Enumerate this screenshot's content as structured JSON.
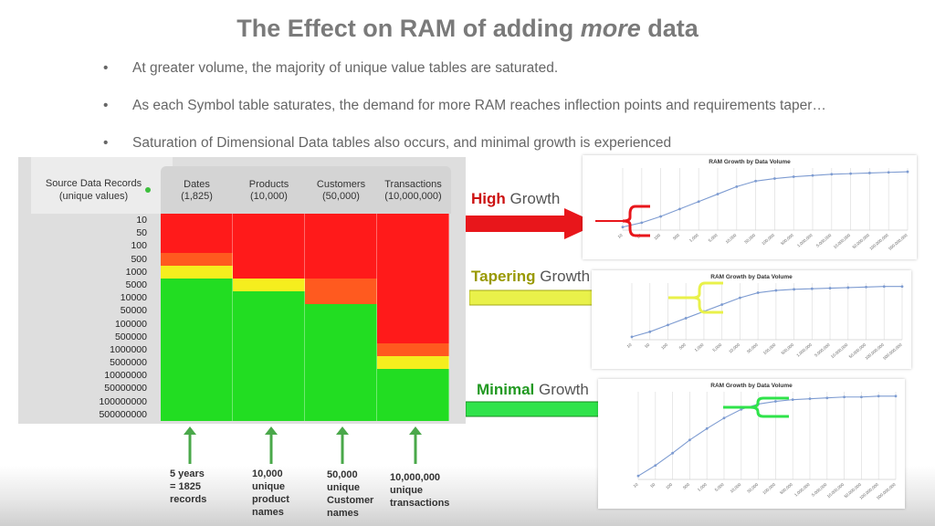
{
  "slide": {
    "title_part1": "The Effect on RAM of adding ",
    "title_emph": "more",
    "title_part2": " data",
    "bullets": [
      "At greater volume,  the majority of unique value tables are saturated.",
      "As each Symbol table saturates, the demand for more RAM reaches inflection points and requirements taper…",
      "Saturation of Dimensional Data tables also occurs, and minimal growth is experienced"
    ],
    "bullet_char": "•"
  },
  "heat_table": {
    "row_header": [
      "Source Data Records",
      "(unique values)"
    ],
    "columns": [
      {
        "name": "Dates",
        "sub": "(1,825)"
      },
      {
        "name": "Products",
        "sub": "(10,000)"
      },
      {
        "name": "Customers",
        "sub": "(50,000)"
      },
      {
        "name": "Transactions",
        "sub": "(10,000,000)"
      }
    ],
    "rows": [
      "10",
      "50",
      "100",
      "500",
      "1000",
      "5000",
      "10000",
      "50000",
      "100000",
      "500000",
      "1000000",
      "5000000",
      "10000000",
      "50000000",
      "100000000",
      "500000000"
    ],
    "cell_levels": [
      [
        "R",
        "R",
        "R",
        "R"
      ],
      [
        "R",
        "R",
        "R",
        "R"
      ],
      [
        "R",
        "R",
        "R",
        "R"
      ],
      [
        "O",
        "R",
        "R",
        "R"
      ],
      [
        "Y",
        "R",
        "R",
        "R"
      ],
      [
        "G",
        "Y",
        "O",
        "R"
      ],
      [
        "G",
        "G",
        "O",
        "R"
      ],
      [
        "G",
        "G",
        "G",
        "R"
      ],
      [
        "G",
        "G",
        "G",
        "R"
      ],
      [
        "G",
        "G",
        "G",
        "R"
      ],
      [
        "G",
        "G",
        "G",
        "O"
      ],
      [
        "G",
        "G",
        "G",
        "Y"
      ],
      [
        "G",
        "G",
        "G",
        "G"
      ],
      [
        "G",
        "G",
        "G",
        "G"
      ],
      [
        "G",
        "G",
        "G",
        "G"
      ],
      [
        "G",
        "G",
        "G",
        "G"
      ]
    ],
    "level_colors": {
      "R": "#ff1a1a",
      "O": "#ff5a1f",
      "Y": "#f5ee1e",
      "G": "#22dd22"
    }
  },
  "growth_labels": {
    "high": {
      "kw": "High",
      "rest": " Growth",
      "color": "#cc1111"
    },
    "tapering": {
      "kw": "Tapering",
      "rest": " Growth",
      "color": "#999900"
    },
    "minimal": {
      "kw": "Minimal",
      "rest": " Growth",
      "color": "#229922"
    }
  },
  "chart_title": "RAM Growth by Data Volume",
  "chart_data": [
    {
      "type": "line",
      "title": "RAM Growth by Data Volume",
      "x": [
        "10",
        "50",
        "100",
        "500",
        "1,000",
        "5,000",
        "10,000",
        "50,000",
        "100,000",
        "500,000",
        "1,000,000",
        "5,000,000",
        "10,000,000",
        "50,000,000",
        "100,000,000",
        "500,000,000"
      ],
      "values": [
        5,
        12,
        22,
        34,
        46,
        58,
        70,
        79,
        83,
        86,
        88,
        90,
        91,
        92,
        93,
        94
      ],
      "ylim": [
        0,
        100
      ],
      "grid": "vertical"
    },
    {
      "type": "line",
      "title": "RAM Growth by Data Volume",
      "x": [
        "10",
        "50",
        "100",
        "500",
        "1,000",
        "5,000",
        "10,000",
        "50,000",
        "100,000",
        "500,000",
        "1,000,000",
        "5,000,000",
        "10,000,000",
        "50,000,000",
        "100,000,000",
        "500,000,000"
      ],
      "values": [
        5,
        14,
        26,
        38,
        50,
        62,
        74,
        83,
        87,
        89,
        90,
        91,
        92,
        93,
        94,
        94
      ],
      "ylim": [
        0,
        100
      ],
      "grid": "vertical"
    },
    {
      "type": "line",
      "title": "RAM Growth by Data Volume",
      "x": [
        "10",
        "50",
        "100",
        "500",
        "1,000",
        "5,000",
        "10,000",
        "50,000",
        "100,000",
        "500,000",
        "1,000,000",
        "5,000,000",
        "10,000,000",
        "50,000,000",
        "100,000,000",
        "500,000,000"
      ],
      "values": [
        4,
        16,
        30,
        45,
        58,
        70,
        80,
        86,
        89,
        91,
        92,
        93,
        94,
        94,
        95,
        95
      ],
      "ylim": [
        0,
        100
      ],
      "grid": "vertical"
    }
  ],
  "notes": [
    [
      "5 years",
      "= 1825",
      "records"
    ],
    [
      "10,000",
      "unique",
      "product",
      "names"
    ],
    [
      "50,000",
      "unique",
      "Customer",
      "names"
    ],
    [
      "10,000,000",
      "unique",
      "transactions"
    ]
  ]
}
